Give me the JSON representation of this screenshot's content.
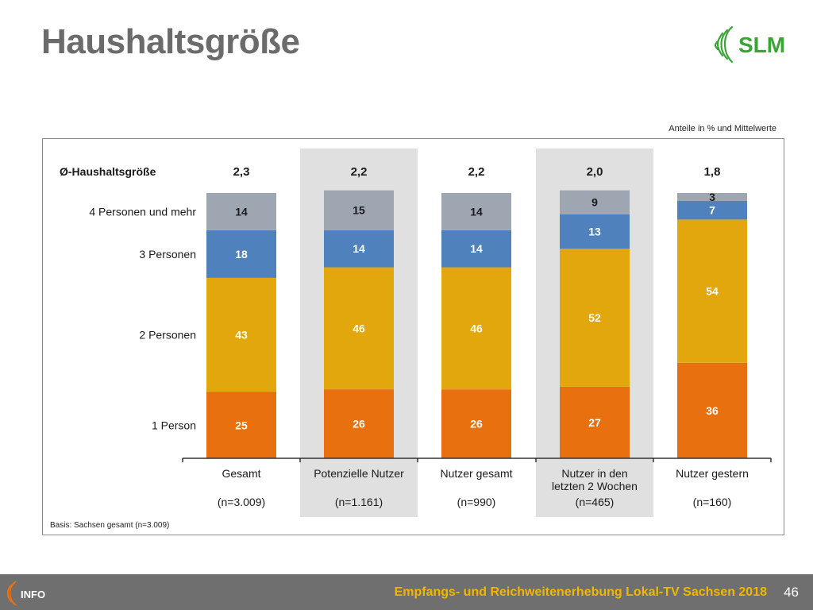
{
  "page": {
    "title": "Haushaltsgröße",
    "note": "Anteile in % und Mittelwerte",
    "basis": "Basis: Sachsen gesamt (n=3.009)",
    "footer_text": "Empfangs- und Reichweitenerhebung Lokal-TV Sachsen 2018",
    "page_number": "46",
    "logo_text": "SLM",
    "footer_logo_text": "INFO"
  },
  "colors": {
    "person1": "#e8700f",
    "person2": "#e1a70c",
    "person3": "#4f81bd",
    "person4": "#9ea7b1",
    "highlight_band": "#e0e0e0",
    "logo_green": "#3aa535",
    "footer_bg": "#6f6f6f",
    "footer_text": "#f0b800"
  },
  "chart_data": {
    "type": "bar",
    "stacked": true,
    "orientation": "vertical",
    "avg_label": "Ø-Haushaltsgröße",
    "categories": [
      {
        "name": "Gesamt",
        "name2": "",
        "n": "(n=3.009)",
        "avg": "2,3",
        "highlight": false
      },
      {
        "name": "Potenzielle Nutzer",
        "name2": "",
        "n": "(n=1.161)",
        "avg": "2,2",
        "highlight": true
      },
      {
        "name": "Nutzer gesamt",
        "name2": "",
        "n": "(n=990)",
        "avg": "2,2",
        "highlight": false
      },
      {
        "name": "Nutzer in den",
        "name2": "letzten 2 Wochen",
        "n": "(n=465)",
        "avg": "2,0",
        "highlight": true
      },
      {
        "name": "Nutzer gestern",
        "name2": "",
        "n": "(n=160)",
        "avg": "1,8",
        "highlight": false
      }
    ],
    "series": [
      {
        "name": "1 Person",
        "color_key": "person1",
        "values": [
          25,
          26,
          26,
          27,
          36
        ]
      },
      {
        "name": "2 Personen",
        "color_key": "person2",
        "values": [
          43,
          46,
          46,
          52,
          54
        ]
      },
      {
        "name": "3 Personen",
        "color_key": "person3",
        "values": [
          18,
          14,
          14,
          13,
          7
        ]
      },
      {
        "name": "4 Personen und mehr",
        "color_key": "person4",
        "values": [
          14,
          15,
          14,
          9,
          3
        ]
      }
    ],
    "ylim": [
      0,
      100
    ],
    "unit": "%",
    "legend_position": "left"
  }
}
